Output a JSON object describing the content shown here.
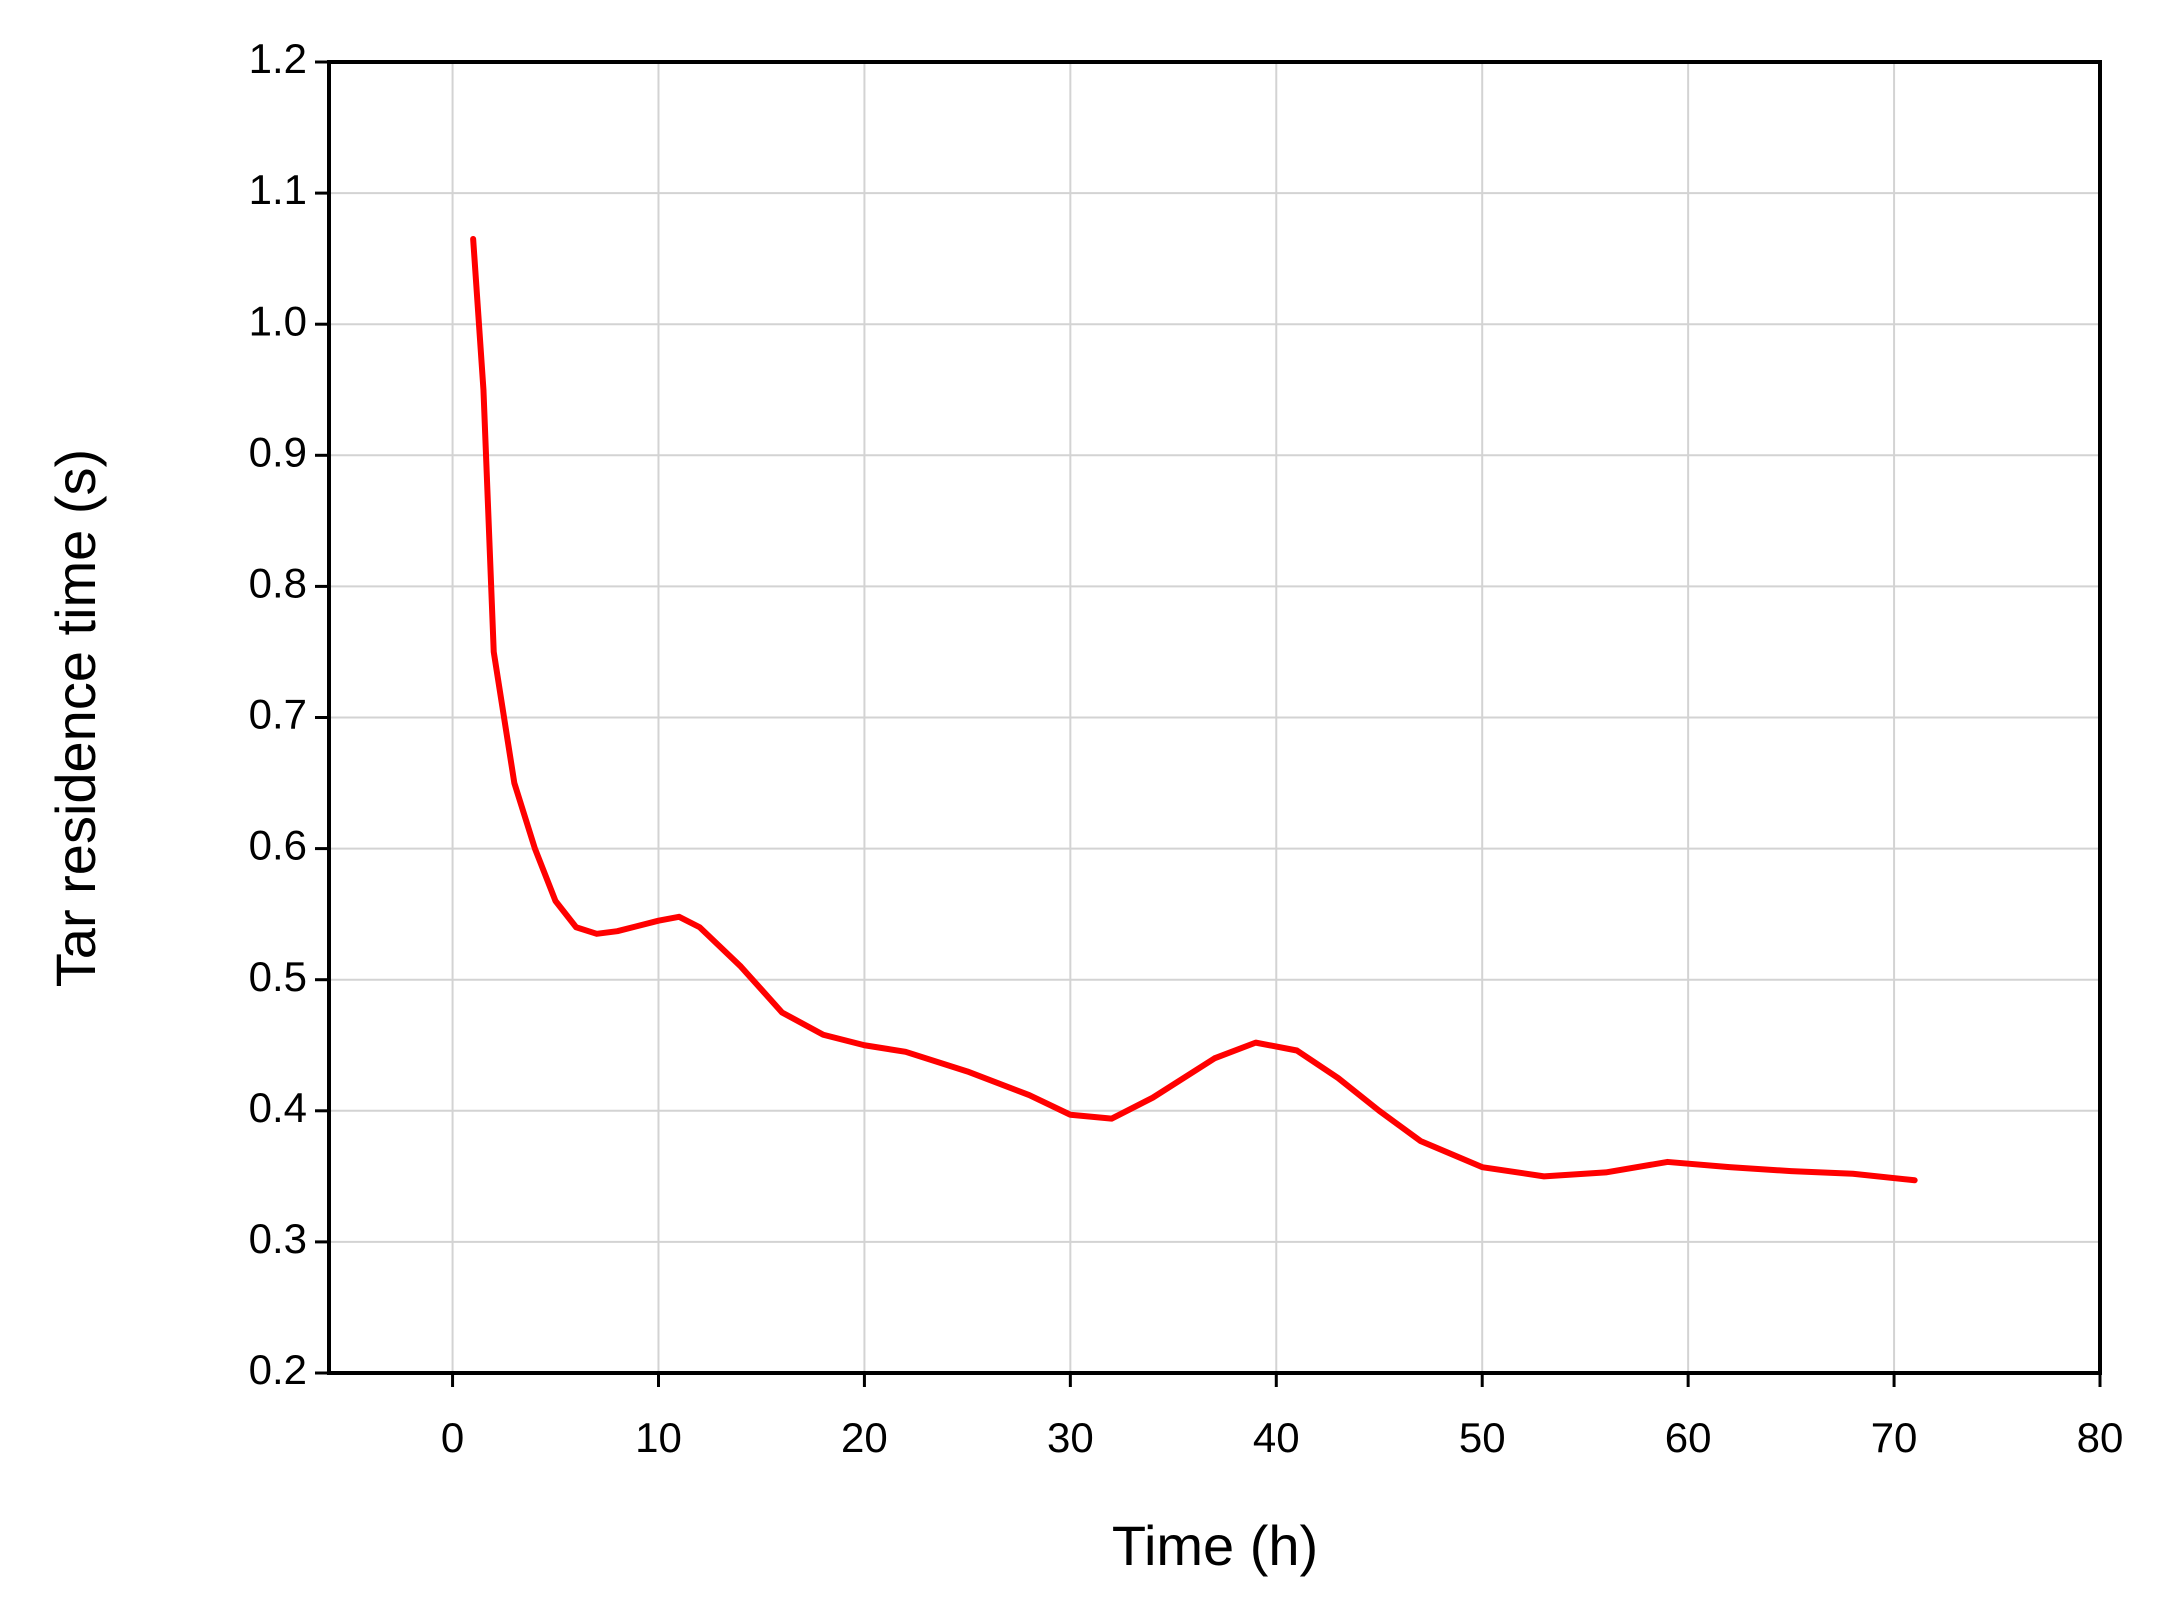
{
  "chart_data": {
    "type": "line",
    "xlabel": "Time (h)",
    "ylabel": "Tar residence time (s)",
    "x": [
      1,
      1.5,
      2,
      3,
      4,
      5,
      6,
      7,
      8,
      10,
      11,
      12,
      14,
      16,
      18,
      20,
      22,
      25,
      28,
      30,
      32,
      34,
      37,
      39,
      41,
      43,
      45,
      47,
      50,
      53,
      56,
      59,
      62,
      65,
      68,
      71
    ],
    "series": [
      {
        "color": "#ff0000",
        "values": [
          1.065,
          0.95,
          0.75,
          0.65,
          0.6,
          0.56,
          0.54,
          0.535,
          0.537,
          0.545,
          0.548,
          0.54,
          0.51,
          0.475,
          0.458,
          0.45,
          0.445,
          0.43,
          0.412,
          0.397,
          0.394,
          0.41,
          0.44,
          0.452,
          0.446,
          0.425,
          0.4,
          0.377,
          0.357,
          0.35,
          0.353,
          0.361,
          0.357,
          0.354,
          0.352,
          0.347
        ]
      }
    ],
    "xlim": [
      -6,
      80
    ],
    "xticks": [
      0,
      10,
      20,
      30,
      40,
      50,
      60,
      70,
      80
    ],
    "ylim": [
      0.2,
      1.2
    ],
    "yticks": [
      0.2,
      0.3,
      0.4,
      0.5,
      0.6,
      0.7,
      0.8,
      0.9,
      {
        "value": 1,
        "label": "1.0"
      },
      1.1,
      1.2
    ],
    "grid": true
  }
}
